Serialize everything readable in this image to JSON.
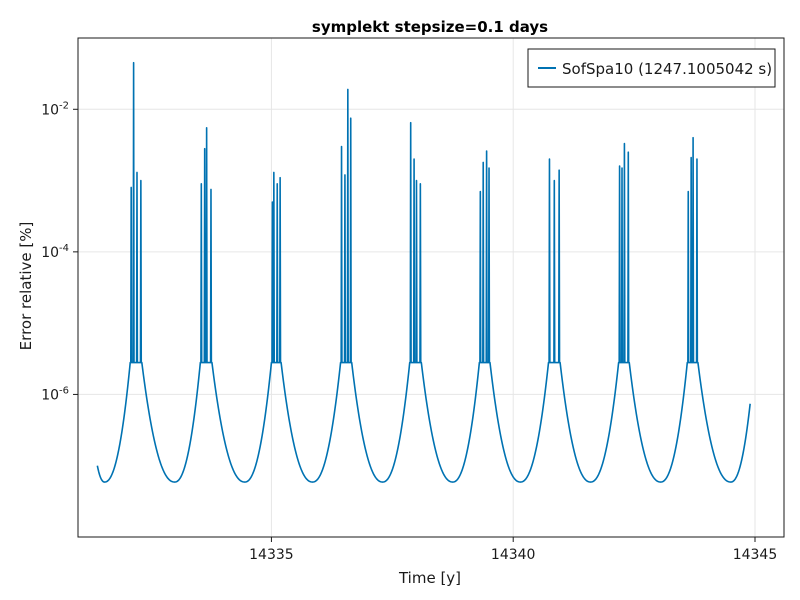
{
  "chart_data": {
    "type": "line",
    "title": "symplekt stepsize=0.1 days",
    "xlabel": "Time [y]",
    "ylabel": "Error relative [%]",
    "xlim": [
      14331.0,
      14345.6
    ],
    "ylim": [
      1e-08,
      0.1
    ],
    "yscale": "log",
    "x_ticks": [
      14335,
      14340,
      14345
    ],
    "x_tick_labels": [
      "14335",
      "14340",
      "14345"
    ],
    "y_ticks": [
      1e-06,
      0.0001,
      0.01
    ],
    "y_tick_labels": [
      {
        "base": "10",
        "exp": "-6"
      },
      {
        "base": "10",
        "exp": "-4"
      },
      {
        "base": "10",
        "exp": "-2"
      }
    ],
    "grid": true,
    "legend_position": "top-right",
    "series": [
      {
        "name": "SofSpa10 (1247.1005042 s)",
        "color": "#0072b2",
        "x_start": 14331.4,
        "x_end": 14344.9,
        "start_value": 1e-07,
        "end_value": 7.4e-07,
        "minima": [
          {
            "x": 14331.55,
            "y": 5.9e-08
          },
          {
            "x": 14333.0,
            "y": 5.9e-08
          },
          {
            "x": 14334.45,
            "y": 5.9e-08
          },
          {
            "x": 14335.85,
            "y": 5.9e-08
          },
          {
            "x": 14337.3,
            "y": 5.9e-08
          },
          {
            "x": 14338.75,
            "y": 5.9e-08
          },
          {
            "x": 14340.15,
            "y": 5.9e-08
          },
          {
            "x": 14341.6,
            "y": 5.9e-08
          },
          {
            "x": 14343.05,
            "y": 5.9e-08
          },
          {
            "x": 14344.5,
            "y": 5.9e-08
          }
        ],
        "peak_groups": [
          {
            "center": 14332.2,
            "base": 2.8e-06,
            "spikes": [
              {
                "x": 14332.1,
                "y": 0.0008
              },
              {
                "x": 14332.15,
                "y": 0.045
              },
              {
                "x": 14332.22,
                "y": 0.0013
              },
              {
                "x": 14332.3,
                "y": 0.001
              }
            ]
          },
          {
            "center": 14333.65,
            "base": 2.8e-06,
            "spikes": [
              {
                "x": 14333.55,
                "y": 0.0009
              },
              {
                "x": 14333.62,
                "y": 0.0028
              },
              {
                "x": 14333.66,
                "y": 0.0055
              },
              {
                "x": 14333.75,
                "y": 0.00075
              }
            ]
          },
          {
            "center": 14335.1,
            "base": 2.8e-06,
            "spikes": [
              {
                "x": 14335.02,
                "y": 0.0005
              },
              {
                "x": 14335.05,
                "y": 0.0013
              },
              {
                "x": 14335.12,
                "y": 0.0009
              },
              {
                "x": 14335.18,
                "y": 0.0011
              }
            ]
          },
          {
            "center": 14336.55,
            "base": 2.8e-06,
            "spikes": [
              {
                "x": 14336.45,
                "y": 0.003
              },
              {
                "x": 14336.52,
                "y": 0.0012
              },
              {
                "x": 14336.58,
                "y": 0.019
              },
              {
                "x": 14336.64,
                "y": 0.0075
              }
            ]
          },
          {
            "center": 14337.95,
            "base": 2.8e-06,
            "spikes": [
              {
                "x": 14337.88,
                "y": 0.0065
              },
              {
                "x": 14337.95,
                "y": 0.002
              },
              {
                "x": 14338.0,
                "y": 0.001
              },
              {
                "x": 14338.08,
                "y": 0.0009
              }
            ]
          },
          {
            "center": 14339.4,
            "base": 2.8e-06,
            "spikes": [
              {
                "x": 14339.32,
                "y": 0.0007
              },
              {
                "x": 14339.38,
                "y": 0.0018
              },
              {
                "x": 14339.45,
                "y": 0.0026
              },
              {
                "x": 14339.5,
                "y": 0.0015
              }
            ]
          },
          {
            "center": 14340.85,
            "base": 2.8e-06,
            "spikes": [
              {
                "x": 14340.75,
                "y": 0.002
              },
              {
                "x": 14340.85,
                "y": 0.001
              },
              {
                "x": 14340.95,
                "y": 0.0014
              }
            ]
          },
          {
            "center": 14342.3,
            "base": 2.8e-06,
            "spikes": [
              {
                "x": 14342.2,
                "y": 0.0016
              },
              {
                "x": 14342.25,
                "y": 0.0015
              },
              {
                "x": 14342.3,
                "y": 0.0033
              },
              {
                "x": 14342.38,
                "y": 0.0025
              }
            ]
          },
          {
            "center": 14343.75,
            "base": 2.8e-06,
            "spikes": [
              {
                "x": 14343.62,
                "y": 0.0007
              },
              {
                "x": 14343.68,
                "y": 0.0021
              },
              {
                "x": 14343.72,
                "y": 0.004
              },
              {
                "x": 14343.8,
                "y": 0.002
              }
            ]
          }
        ]
      }
    ]
  }
}
